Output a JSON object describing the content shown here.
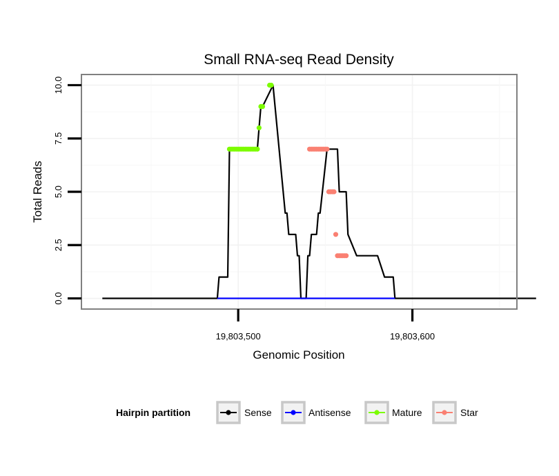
{
  "chart_data": {
    "type": "line",
    "title": "Small RNA-seq Read Density",
    "xlabel": "Genomic Position",
    "ylabel": "Total Reads",
    "xlim": [
      19803410,
      19803660
    ],
    "ylim": [
      -0.5,
      10.5
    ],
    "x_ticks": [
      {
        "value": 19803500,
        "label": "19,803,500"
      },
      {
        "value": 19803600,
        "label": "19,803,600"
      }
    ],
    "y_ticks": [
      {
        "value": 0,
        "label": "0.0"
      },
      {
        "value": 2.5,
        "label": "2.5"
      },
      {
        "value": 5,
        "label": "5.0"
      },
      {
        "value": 7.5,
        "label": "7.5"
      },
      {
        "value": 10,
        "label": "10.0"
      }
    ],
    "grid": true,
    "legend": {
      "title": "Hairpin partition",
      "position": "bottom",
      "entries": [
        {
          "label": "Sense",
          "color": "#000000"
        },
        {
          "label": "Antisense",
          "color": "#0000ff"
        },
        {
          "label": "Mature",
          "color": "#7cfc00"
        },
        {
          "label": "Star",
          "color": "#fa8072"
        }
      ]
    },
    "series": [
      {
        "name": "Sense",
        "color": "#000000",
        "x": [
          19803422,
          19803488,
          19803489,
          19803494,
          19803495,
          19803511,
          19803512,
          19803513,
          19803514,
          19803520,
          19803527,
          19803528,
          19803529,
          19803530,
          19803533,
          19803534,
          19803535,
          19803536,
          19803539,
          19803540,
          19803541,
          19803542,
          19803545,
          19803546,
          19803547,
          19803551,
          19803552,
          19803557,
          19803558,
          19803562,
          19803563,
          19803568,
          19803579,
          19803580,
          19803584,
          19803585,
          19803588,
          19803589,
          19803590,
          19803671
        ],
        "y": [
          0,
          0,
          1,
          1,
          7,
          7,
          8,
          9,
          9,
          10,
          4,
          4,
          3,
          3,
          3,
          2,
          2,
          0,
          0,
          2,
          2,
          3,
          3,
          4,
          4,
          7,
          7,
          7,
          5,
          5,
          3,
          2,
          2,
          2,
          1,
          1,
          1,
          1,
          0,
          0
        ]
      },
      {
        "name": "Antisense",
        "color": "#0000ff",
        "x": [
          19803488,
          19803590
        ],
        "y": [
          0,
          0
        ]
      },
      {
        "name": "Mature",
        "color": "#7cfc00",
        "x": [
          19803495,
          19803496,
          19803497,
          19803498,
          19803499,
          19803500,
          19803501,
          19803502,
          19803503,
          19803504,
          19803505,
          19803506,
          19803507,
          19803508,
          19803509,
          19803510,
          19803511,
          19803512,
          19803513,
          19803514,
          19803518,
          19803519
        ],
        "y": [
          7,
          7,
          7,
          7,
          7,
          7,
          7,
          7,
          7,
          7,
          7,
          7,
          7,
          7,
          7,
          7,
          7,
          8,
          9,
          9,
          10,
          10
        ]
      },
      {
        "name": "Star",
        "color": "#fa8072",
        "x": [
          19803541,
          19803542,
          19803543,
          19803544,
          19803545,
          19803546,
          19803547,
          19803548,
          19803549,
          19803550,
          19803551,
          19803552,
          19803553,
          19803554,
          19803555,
          19803556,
          19803557,
          19803558,
          19803559,
          19803560,
          19803561,
          19803562
        ],
        "y": [
          7,
          7,
          7,
          7,
          7,
          7,
          7,
          7,
          7,
          7,
          7,
          5,
          5,
          5,
          5,
          3,
          2,
          2,
          2,
          2,
          2,
          2
        ]
      }
    ]
  }
}
